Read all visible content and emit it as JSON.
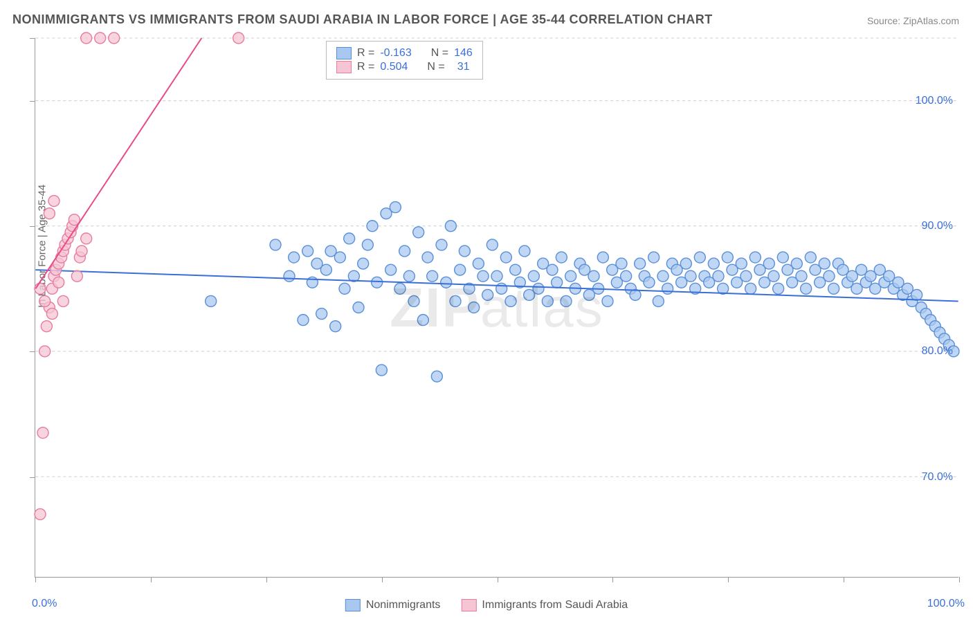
{
  "title": "NONIMMIGRANTS VS IMMIGRANTS FROM SAUDI ARABIA IN LABOR FORCE | AGE 35-44 CORRELATION CHART",
  "source": "Source: ZipAtlas.com",
  "watermark": "ZIPatlas",
  "chart": {
    "type": "scatter",
    "ylabel": "In Labor Force | Age 35-44",
    "xlim": [
      0,
      100
    ],
    "ylim": [
      62,
      105
    ],
    "xtick_positions": [
      0,
      12.5,
      25,
      37.5,
      50,
      62.5,
      75,
      87.5,
      100
    ],
    "xtick_labels": {
      "0": "0.0%",
      "100": "100.0%"
    },
    "ytick_positions": [
      70,
      80,
      90,
      100
    ],
    "ytick_labels": {
      "70": "70.0%",
      "80": "80.0%",
      "90": "90.0%",
      "100": "100.0%"
    },
    "grid_y": [
      70,
      80,
      90,
      100,
      105
    ],
    "grid_color": "#cccccc",
    "background_color": "#ffffff",
    "axis_color": "#999999",
    "label_color": "#666666",
    "tick_label_color": "#3a6fd8",
    "tick_label_fontsize": 16,
    "title_fontsize": 18,
    "title_color": "#555555",
    "marker_radius": 8,
    "marker_stroke_width": 1.4,
    "trendline_width": 2
  },
  "series": [
    {
      "name": "Nonimmigrants",
      "fill_color": "#a9c8f0",
      "stroke_color": "#5a8fd8",
      "trend_color": "#3a6fd8",
      "r_value": "-0.163",
      "n_value": "146",
      "trendline": {
        "x1": 0,
        "y1": 86.5,
        "x2": 100,
        "y2": 84.0
      },
      "points": [
        [
          19,
          84
        ],
        [
          26,
          88.5
        ],
        [
          27.5,
          86
        ],
        [
          28,
          87.5
        ],
        [
          29,
          82.5
        ],
        [
          29.5,
          88
        ],
        [
          30,
          85.5
        ],
        [
          30.5,
          87
        ],
        [
          31,
          83
        ],
        [
          31.5,
          86.5
        ],
        [
          32,
          88
        ],
        [
          32.5,
          82
        ],
        [
          33,
          87.5
        ],
        [
          33.5,
          85
        ],
        [
          34,
          89
        ],
        [
          34.5,
          86
        ],
        [
          35,
          83.5
        ],
        [
          35.5,
          87
        ],
        [
          36,
          88.5
        ],
        [
          36.5,
          90
        ],
        [
          37,
          85.5
        ],
        [
          37.5,
          78.5
        ],
        [
          38,
          91
        ],
        [
          38.5,
          86.5
        ],
        [
          39,
          91.5
        ],
        [
          39.5,
          85
        ],
        [
          40,
          88
        ],
        [
          40.5,
          86
        ],
        [
          41,
          84
        ],
        [
          41.5,
          89.5
        ],
        [
          42,
          82.5
        ],
        [
          42.5,
          87.5
        ],
        [
          43,
          86
        ],
        [
          43.5,
          78
        ],
        [
          44,
          88.5
        ],
        [
          44.5,
          85.5
        ],
        [
          45,
          90
        ],
        [
          45.5,
          84
        ],
        [
          46,
          86.5
        ],
        [
          46.5,
          88
        ],
        [
          47,
          85
        ],
        [
          47.5,
          83.5
        ],
        [
          48,
          87
        ],
        [
          48.5,
          86
        ],
        [
          49,
          84.5
        ],
        [
          49.5,
          88.5
        ],
        [
          50,
          86
        ],
        [
          50.5,
          85
        ],
        [
          51,
          87.5
        ],
        [
          51.5,
          84
        ],
        [
          52,
          86.5
        ],
        [
          52.5,
          85.5
        ],
        [
          53,
          88
        ],
        [
          53.5,
          84.5
        ],
        [
          54,
          86
        ],
        [
          54.5,
          85
        ],
        [
          55,
          87
        ],
        [
          55.5,
          84
        ],
        [
          56,
          86.5
        ],
        [
          56.5,
          85.5
        ],
        [
          57,
          87.5
        ],
        [
          57.5,
          84
        ],
        [
          58,
          86
        ],
        [
          58.5,
          85
        ],
        [
          59,
          87
        ],
        [
          59.5,
          86.5
        ],
        [
          60,
          84.5
        ],
        [
          60.5,
          86
        ],
        [
          61,
          85
        ],
        [
          61.5,
          87.5
        ],
        [
          62,
          84
        ],
        [
          62.5,
          86.5
        ],
        [
          63,
          85.5
        ],
        [
          63.5,
          87
        ],
        [
          64,
          86
        ],
        [
          64.5,
          85
        ],
        [
          65,
          84.5
        ],
        [
          65.5,
          87
        ],
        [
          66,
          86
        ],
        [
          66.5,
          85.5
        ],
        [
          67,
          87.5
        ],
        [
          67.5,
          84
        ],
        [
          68,
          86
        ],
        [
          68.5,
          85
        ],
        [
          69,
          87
        ],
        [
          69.5,
          86.5
        ],
        [
          70,
          85.5
        ],
        [
          70.5,
          87
        ],
        [
          71,
          86
        ],
        [
          71.5,
          85
        ],
        [
          72,
          87.5
        ],
        [
          72.5,
          86
        ],
        [
          73,
          85.5
        ],
        [
          73.5,
          87
        ],
        [
          74,
          86
        ],
        [
          74.5,
          85
        ],
        [
          75,
          87.5
        ],
        [
          75.5,
          86.5
        ],
        [
          76,
          85.5
        ],
        [
          76.5,
          87
        ],
        [
          77,
          86
        ],
        [
          77.5,
          85
        ],
        [
          78,
          87.5
        ],
        [
          78.5,
          86.5
        ],
        [
          79,
          85.5
        ],
        [
          79.5,
          87
        ],
        [
          80,
          86
        ],
        [
          80.5,
          85
        ],
        [
          81,
          87.5
        ],
        [
          81.5,
          86.5
        ],
        [
          82,
          85.5
        ],
        [
          82.5,
          87
        ],
        [
          83,
          86
        ],
        [
          83.5,
          85
        ],
        [
          84,
          87.5
        ],
        [
          84.5,
          86.5
        ],
        [
          85,
          85.5
        ],
        [
          85.5,
          87
        ],
        [
          86,
          86
        ],
        [
          86.5,
          85
        ],
        [
          87,
          87
        ],
        [
          87.5,
          86.5
        ],
        [
          88,
          85.5
        ],
        [
          88.5,
          86
        ],
        [
          89,
          85
        ],
        [
          89.5,
          86.5
        ],
        [
          90,
          85.5
        ],
        [
          90.5,
          86
        ],
        [
          91,
          85
        ],
        [
          91.5,
          86.5
        ],
        [
          92,
          85.5
        ],
        [
          92.5,
          86
        ],
        [
          93,
          85
        ],
        [
          93.5,
          85.5
        ],
        [
          94,
          84.5
        ],
        [
          94.5,
          85
        ],
        [
          95,
          84
        ],
        [
          95.5,
          84.5
        ],
        [
          96,
          83.5
        ],
        [
          96.5,
          83
        ],
        [
          97,
          82.5
        ],
        [
          97.5,
          82
        ],
        [
          98,
          81.5
        ],
        [
          98.5,
          81
        ],
        [
          99,
          80.5
        ],
        [
          99.5,
          80
        ]
      ]
    },
    {
      "name": "Immigrants from Saudi Arabia",
      "fill_color": "#f5c5d3",
      "stroke_color": "#e87ba0",
      "trend_color": "#e84a8a",
      "r_value": "0.504",
      "n_value": "31",
      "trendline": {
        "x1": 0,
        "y1": 85,
        "x2": 18,
        "y2": 105
      },
      "points": [
        [
          0.5,
          67
        ],
        [
          0.8,
          73.5
        ],
        [
          1,
          80
        ],
        [
          1.2,
          82
        ],
        [
          1.5,
          83.5
        ],
        [
          1.8,
          85
        ],
        [
          2,
          86
        ],
        [
          2.2,
          86.5
        ],
        [
          2.5,
          87
        ],
        [
          2.8,
          87.5
        ],
        [
          3,
          88
        ],
        [
          3.2,
          88.5
        ],
        [
          3.5,
          89
        ],
        [
          3.8,
          89.5
        ],
        [
          4,
          90
        ],
        [
          4.2,
          90.5
        ],
        [
          4.5,
          86
        ],
        [
          4.8,
          87.5
        ],
        [
          5,
          88
        ],
        [
          5.5,
          89
        ],
        [
          1.5,
          91
        ],
        [
          2,
          92
        ],
        [
          0.5,
          85
        ],
        [
          1,
          84
        ],
        [
          2.5,
          85.5
        ],
        [
          5.5,
          105
        ],
        [
          7,
          105
        ],
        [
          8.5,
          105
        ],
        [
          22,
          105
        ],
        [
          3,
          84
        ],
        [
          1.8,
          83
        ]
      ]
    }
  ],
  "stats_legend": {
    "r_label": "R =",
    "n_label": "N =",
    "value_color": "#3a6fd8",
    "label_color": "#555555"
  },
  "bottom_legend": {
    "items": [
      "Nonimmigrants",
      "Immigrants from Saudi Arabia"
    ]
  }
}
